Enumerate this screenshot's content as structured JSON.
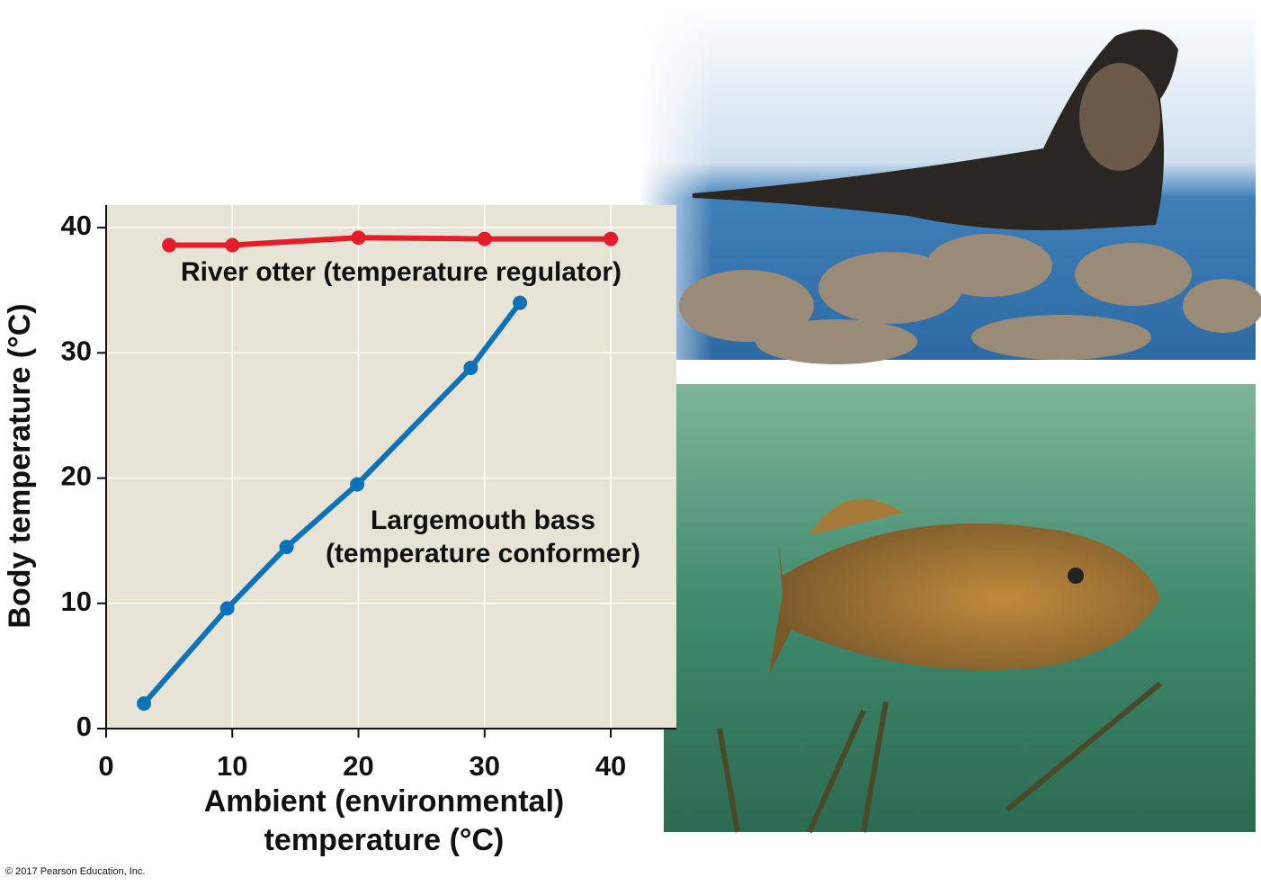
{
  "chart_data": {
    "type": "line",
    "ylabel": "Body temperature (°C)",
    "xlabel": [
      "Ambient (environmental)",
      "temperature (°C)"
    ],
    "xlim": [
      0,
      45.2
    ],
    "ylim": [
      0,
      41.8
    ],
    "xticks": [
      0,
      10,
      20,
      30,
      40
    ],
    "yticks": [
      0,
      10,
      20,
      30,
      40
    ],
    "grid": true,
    "series": [
      {
        "color": "#e31e2a",
        "x": [
          5,
          10,
          20,
          30,
          40
        ],
        "values": [
          38.6,
          38.6,
          39.2,
          39.1,
          39.1
        ]
      },
      {
        "color": "#0b72b9",
        "x": [
          3,
          9.6,
          14.3,
          19.9,
          28.9,
          32.8
        ],
        "values": [
          2,
          9.6,
          14.5,
          19.5,
          28.8,
          34
        ]
      }
    ],
    "annotations": [
      {
        "lines": [
          "River otter (temperature regulator)"
        ]
      },
      {
        "lines": [
          "Largemouth bass",
          "(temperature conformer)"
        ]
      }
    ]
  },
  "credit": "© 2017 Pearson Education, Inc."
}
